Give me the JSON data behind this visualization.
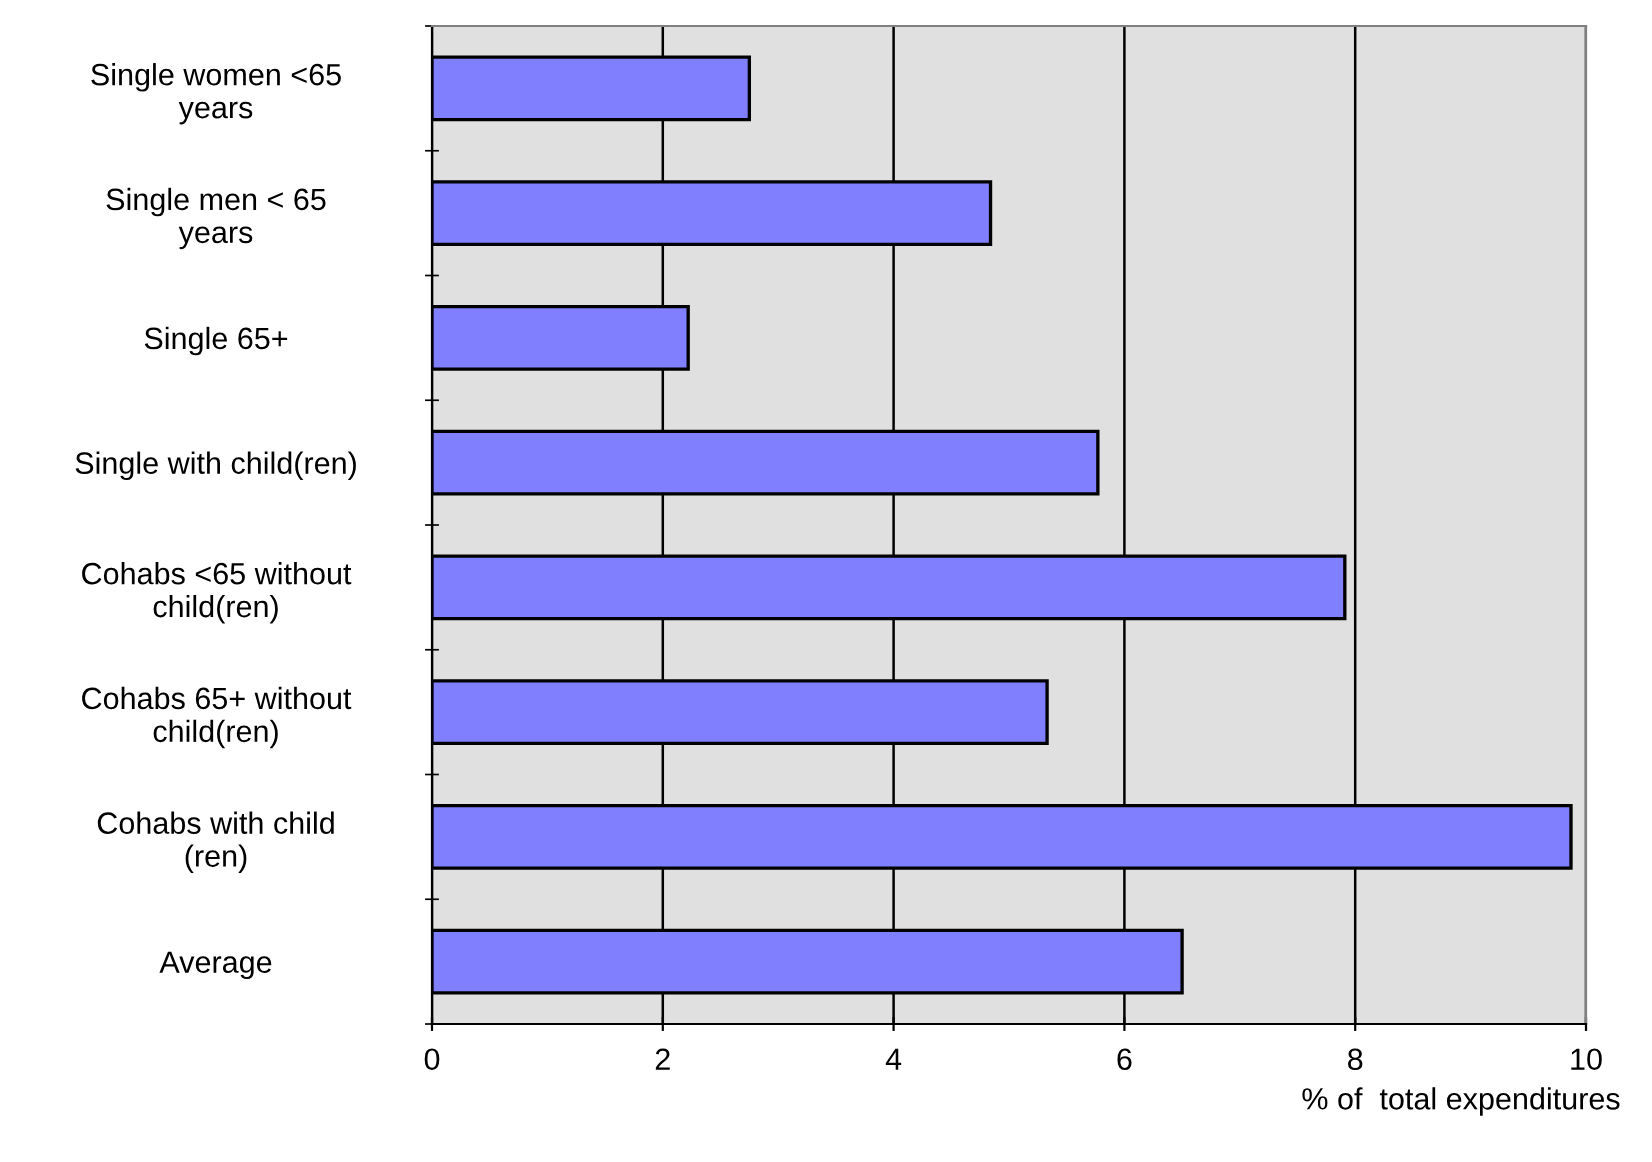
{
  "chart_data": {
    "type": "bar",
    "orientation": "horizontal",
    "categories": [
      "Single women <65\nyears",
      "Single men < 65\nyears",
      "Single 65+",
      "Single with child(ren)",
      "Cohabs <65 without\nchild(ren)",
      "Cohabs 65+ without\nchild(ren)",
      "Cohabs with child\n(ren)",
      "Average"
    ],
    "values": [
      2.75,
      4.84,
      2.22,
      5.77,
      7.91,
      5.33,
      9.87,
      6.5
    ],
    "color": "#8080ff",
    "xlim": [
      0,
      10
    ],
    "xticks": [
      0,
      2,
      4,
      6,
      8,
      10
    ],
    "grid": "x",
    "xlabel": "% of  total expenditures"
  }
}
